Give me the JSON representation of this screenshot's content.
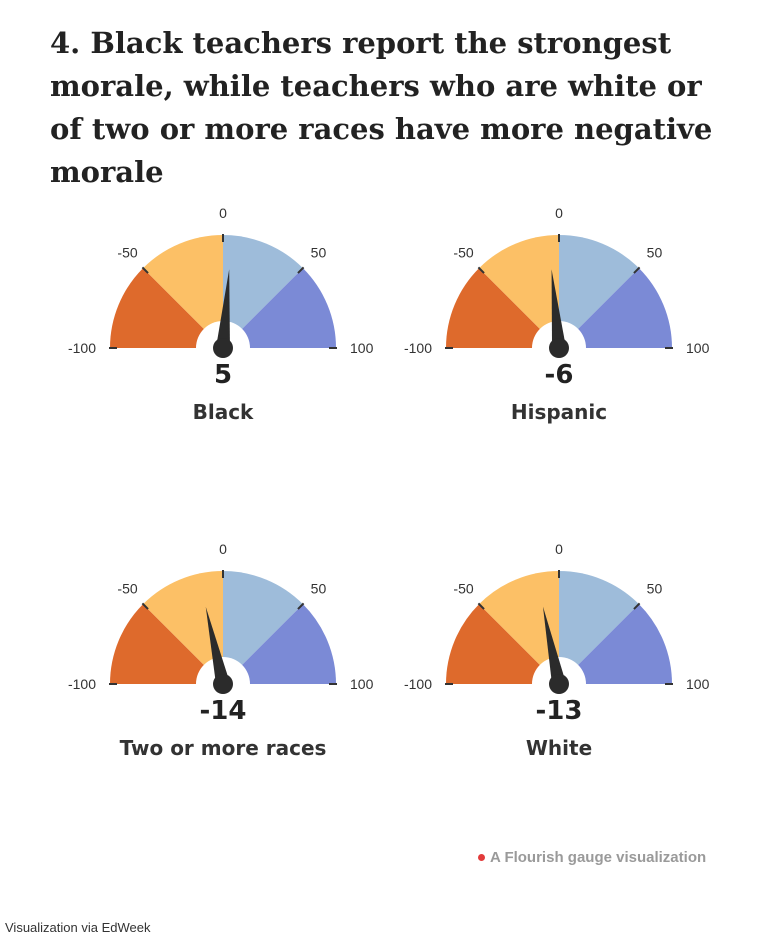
{
  "title": "4. Black teachers report the strongest morale, while teachers who are white or of two or more races have more negative morale",
  "chart_data": {
    "type": "gauge",
    "title": "4. Black teachers report the strongest morale, while teachers who are white or of two or more races have more negative morale",
    "range": [
      -100,
      100
    ],
    "tick_labels": [
      "-100",
      "-50",
      "0",
      "50",
      "100"
    ],
    "bands": [
      {
        "from": -100,
        "to": -50,
        "color": "#de6a2c"
      },
      {
        "from": -50,
        "to": 0,
        "color": "#fcc066"
      },
      {
        "from": 0,
        "to": 50,
        "color": "#9ebcda"
      },
      {
        "from": 50,
        "to": 100,
        "color": "#7b8ad6"
      }
    ],
    "needle_color": "#2b2b2b",
    "gauges": [
      {
        "category": "Black",
        "value": 5,
        "value_label": "5"
      },
      {
        "category": "Hispanic",
        "value": -6,
        "value_label": "-6"
      },
      {
        "category": "Two or more races",
        "value": -14,
        "value_label": "-14"
      },
      {
        "category": "White",
        "value": -13,
        "value_label": "-13"
      }
    ]
  },
  "footer": {
    "credit": "A Flourish gauge visualization",
    "credit_dot_color": "#e23b3b",
    "source": "Visualization via EdWeek"
  }
}
